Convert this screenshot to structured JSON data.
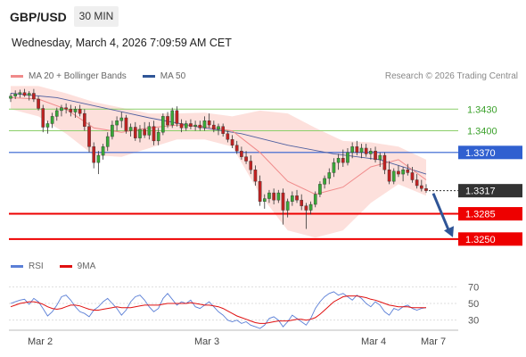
{
  "header": {
    "symbol": "GBP/USD",
    "timeframe": "30 MIN",
    "datetime": "Wednesday, March 4, 2026 7:09:59 AM CET"
  },
  "legend": {
    "items": [
      {
        "label": "MA 20 + Bollinger Bands",
        "color": "#f08a8a"
      },
      {
        "label": "MA 50",
        "color": "#2f5597"
      }
    ],
    "credit": "Research © 2026 Trading Central"
  },
  "rsi_legend": {
    "items": [
      {
        "label": "RSI",
        "color": "#5b7fd6"
      },
      {
        "label": "9MA",
        "color": "#e01010"
      }
    ]
  },
  "x_axis": {
    "ticks": [
      "Mar 2",
      "Mar 3",
      "Mar 4",
      "Mar 7"
    ]
  },
  "levels": [
    {
      "value": 1.343,
      "label": "1.3430",
      "kind": "green"
    },
    {
      "value": 1.34,
      "label": "1.3400",
      "kind": "green"
    },
    {
      "value": 1.337,
      "label": "1.3370",
      "kind": "pivot"
    },
    {
      "value": 1.3285,
      "label": "1.3285",
      "kind": "red"
    },
    {
      "value": 1.325,
      "label": "1.3250",
      "kind": "red"
    }
  ],
  "current_price": {
    "value": 1.3317,
    "label": "1.3317"
  },
  "colors": {
    "up": "#38a838",
    "down": "#c02222",
    "green_level": "#8ccf6a",
    "green_text": "#3aa02a",
    "pivot": "#3060d0",
    "red_level": "#ee0000",
    "current": "#333333",
    "band_fill": "#fde0dc",
    "ma20": "#f08a8a",
    "ma50": "#5060a0",
    "arrow": "#2f5597"
  },
  "chart_data": [
    {
      "type": "candlestick",
      "title": "GBP/USD 30 MIN",
      "ylim": [
        1.323,
        1.3465
      ],
      "ohlc": [
        [
          1.3445,
          1.3452,
          1.344,
          1.3448
        ],
        [
          1.3448,
          1.3456,
          1.3444,
          1.3451
        ],
        [
          1.3451,
          1.3457,
          1.3446,
          1.3453
        ],
        [
          1.3453,
          1.3458,
          1.3447,
          1.3449
        ],
        [
          1.3449,
          1.3455,
          1.3442,
          1.3452
        ],
        [
          1.3452,
          1.3458,
          1.344,
          1.3444
        ],
        [
          1.3444,
          1.3448,
          1.3428,
          1.3431
        ],
        [
          1.3431,
          1.3436,
          1.3398,
          1.3405
        ],
        [
          1.3405,
          1.3414,
          1.3396,
          1.341
        ],
        [
          1.341,
          1.3425,
          1.3404,
          1.342
        ],
        [
          1.342,
          1.3432,
          1.3414,
          1.3428
        ],
        [
          1.3428,
          1.3436,
          1.342,
          1.3432
        ],
        [
          1.3432,
          1.3438,
          1.3424,
          1.343
        ],
        [
          1.343,
          1.3436,
          1.342,
          1.3426
        ],
        [
          1.3426,
          1.3434,
          1.3418,
          1.343
        ],
        [
          1.343,
          1.3436,
          1.342,
          1.3424
        ],
        [
          1.3424,
          1.343,
          1.34,
          1.3406
        ],
        [
          1.3406,
          1.3412,
          1.337,
          1.3378
        ],
        [
          1.3378,
          1.3384,
          1.3348,
          1.3356
        ],
        [
          1.3356,
          1.3372,
          1.334,
          1.3366
        ],
        [
          1.3366,
          1.3382,
          1.336,
          1.3378
        ],
        [
          1.3378,
          1.3398,
          1.3372,
          1.3392
        ],
        [
          1.3392,
          1.3414,
          1.3388,
          1.3408
        ],
        [
          1.3408,
          1.342,
          1.34,
          1.3414
        ],
        [
          1.3414,
          1.3426,
          1.3404,
          1.3418
        ],
        [
          1.3418,
          1.3422,
          1.3396,
          1.34
        ],
        [
          1.34,
          1.341,
          1.3392,
          1.3405
        ],
        [
          1.3405,
          1.3412,
          1.3386,
          1.339
        ],
        [
          1.339,
          1.3408,
          1.3384,
          1.3402
        ],
        [
          1.3402,
          1.3412,
          1.339,
          1.3394
        ],
        [
          1.3394,
          1.3412,
          1.3388,
          1.3406
        ],
        [
          1.3406,
          1.3414,
          1.338,
          1.3386
        ],
        [
          1.3386,
          1.3404,
          1.338,
          1.3398
        ],
        [
          1.3398,
          1.3424,
          1.3394,
          1.342
        ],
        [
          1.342,
          1.3426,
          1.3404,
          1.3408
        ],
        [
          1.3408,
          1.3432,
          1.3404,
          1.3428
        ],
        [
          1.3428,
          1.3434,
          1.3406,
          1.341
        ],
        [
          1.341,
          1.3416,
          1.3398,
          1.3404
        ],
        [
          1.3404,
          1.3414,
          1.34,
          1.341
        ],
        [
          1.341,
          1.3416,
          1.3402,
          1.3406
        ],
        [
          1.3406,
          1.3414,
          1.34,
          1.3408
        ],
        [
          1.3408,
          1.3414,
          1.34,
          1.3404
        ],
        [
          1.3404,
          1.342,
          1.34,
          1.3414
        ],
        [
          1.3414,
          1.3424,
          1.3404,
          1.3408
        ],
        [
          1.3408,
          1.3414,
          1.3398,
          1.3402
        ],
        [
          1.3402,
          1.341,
          1.3394,
          1.3406
        ],
        [
          1.3406,
          1.341,
          1.3392,
          1.3396
        ],
        [
          1.3396,
          1.34,
          1.3384,
          1.3388
        ],
        [
          1.3388,
          1.3394,
          1.3376,
          1.338
        ],
        [
          1.338,
          1.3386,
          1.3368,
          1.3372
        ],
        [
          1.3372,
          1.3378,
          1.336,
          1.3364
        ],
        [
          1.3364,
          1.3372,
          1.3354,
          1.3358
        ],
        [
          1.3358,
          1.3366,
          1.334,
          1.3346
        ],
        [
          1.3346,
          1.3352,
          1.3324,
          1.333
        ],
        [
          1.333,
          1.3338,
          1.3296,
          1.3302
        ],
        [
          1.3302,
          1.3312,
          1.3292,
          1.3306
        ],
        [
          1.3306,
          1.3318,
          1.33,
          1.3314
        ],
        [
          1.3314,
          1.332,
          1.3298,
          1.3304
        ],
        [
          1.3304,
          1.3318,
          1.33,
          1.3314
        ],
        [
          1.3314,
          1.332,
          1.327,
          1.329
        ],
        [
          1.329,
          1.3306,
          1.328,
          1.3302
        ],
        [
          1.3302,
          1.3316,
          1.3296,
          1.331
        ],
        [
          1.331,
          1.3318,
          1.33,
          1.3304
        ],
        [
          1.3304,
          1.3312,
          1.329,
          1.3296
        ],
        [
          1.3296,
          1.33,
          1.3264,
          1.329
        ],
        [
          1.329,
          1.3302,
          1.3284,
          1.3298
        ],
        [
          1.3298,
          1.3316,
          1.3294,
          1.3312
        ],
        [
          1.3312,
          1.333,
          1.3308,
          1.3326
        ],
        [
          1.3326,
          1.3338,
          1.332,
          1.3334
        ],
        [
          1.3334,
          1.3348,
          1.3326,
          1.3342
        ],
        [
          1.3342,
          1.3362,
          1.3336,
          1.3356
        ],
        [
          1.3356,
          1.3368,
          1.3346,
          1.3362
        ],
        [
          1.3362,
          1.3374,
          1.335,
          1.3356
        ],
        [
          1.3356,
          1.3376,
          1.3352,
          1.337
        ],
        [
          1.337,
          1.3384,
          1.3362,
          1.3378
        ],
        [
          1.3378,
          1.3386,
          1.3366,
          1.337
        ],
        [
          1.337,
          1.3382,
          1.3362,
          1.3376
        ],
        [
          1.3376,
          1.3382,
          1.3364,
          1.3368
        ],
        [
          1.3368,
          1.3376,
          1.336,
          1.3372
        ],
        [
          1.3372,
          1.3378,
          1.3356,
          1.336
        ],
        [
          1.336,
          1.337,
          1.335,
          1.3366
        ],
        [
          1.3366,
          1.337,
          1.334,
          1.3346
        ],
        [
          1.3346,
          1.3358,
          1.3326,
          1.333
        ],
        [
          1.333,
          1.3348,
          1.3326,
          1.3344
        ],
        [
          1.3344,
          1.3352,
          1.3336,
          1.334
        ],
        [
          1.334,
          1.335,
          1.333,
          1.3346
        ],
        [
          1.3346,
          1.3354,
          1.3338,
          1.3342
        ],
        [
          1.3342,
          1.335,
          1.3328,
          1.3332
        ],
        [
          1.3332,
          1.334,
          1.332,
          1.3324
        ],
        [
          1.3324,
          1.3332,
          1.3316,
          1.332
        ],
        [
          1.332,
          1.3326,
          1.3314,
          1.3317
        ]
      ],
      "ma20": [
        [
          0,
          1.3446
        ],
        [
          6,
          1.3444
        ],
        [
          12,
          1.343
        ],
        [
          18,
          1.3404
        ],
        [
          24,
          1.3398
        ],
        [
          30,
          1.3404
        ],
        [
          36,
          1.3408
        ],
        [
          42,
          1.3406
        ],
        [
          48,
          1.34
        ],
        [
          54,
          1.337
        ],
        [
          60,
          1.333
        ],
        [
          66,
          1.3312
        ],
        [
          72,
          1.3322
        ],
        [
          78,
          1.335
        ],
        [
          84,
          1.336
        ],
        [
          90,
          1.3332
        ]
      ],
      "ma50": [
        [
          0,
          1.3452
        ],
        [
          10,
          1.3446
        ],
        [
          20,
          1.3432
        ],
        [
          30,
          1.3418
        ],
        [
          40,
          1.3406
        ],
        [
          50,
          1.3396
        ],
        [
          60,
          1.338
        ],
        [
          70,
          1.3368
        ],
        [
          80,
          1.336
        ],
        [
          90,
          1.334
        ]
      ],
      "bollinger_upper": [
        [
          0,
          1.3462
        ],
        [
          6,
          1.3462
        ],
        [
          12,
          1.3452
        ],
        [
          18,
          1.344
        ],
        [
          24,
          1.3432
        ],
        [
          30,
          1.3424
        ],
        [
          36,
          1.3424
        ],
        [
          42,
          1.3425
        ],
        [
          48,
          1.342
        ],
        [
          54,
          1.3428
        ],
        [
          60,
          1.3424
        ],
        [
          66,
          1.3404
        ],
        [
          72,
          1.3386
        ],
        [
          78,
          1.3384
        ],
        [
          84,
          1.3378
        ],
        [
          90,
          1.336
        ]
      ],
      "bollinger_lower": [
        [
          0,
          1.343
        ],
        [
          6,
          1.342
        ],
        [
          12,
          1.3396
        ],
        [
          18,
          1.3366
        ],
        [
          24,
          1.3364
        ],
        [
          30,
          1.3376
        ],
        [
          36,
          1.3388
        ],
        [
          42,
          1.3388
        ],
        [
          48,
          1.3378
        ],
        [
          54,
          1.3312
        ],
        [
          60,
          1.3262
        ],
        [
          66,
          1.3252
        ],
        [
          72,
          1.3262
        ],
        [
          78,
          1.33
        ],
        [
          84,
          1.3326
        ],
        [
          90,
          1.331
        ]
      ]
    },
    {
      "type": "line",
      "title": "RSI",
      "ylim": [
        20,
        80
      ],
      "ticks": [
        70,
        50,
        30
      ],
      "series": [
        {
          "name": "RSI",
          "values": [
            50,
            52,
            54,
            55,
            49,
            56,
            52,
            44,
            35,
            40,
            48,
            58,
            60,
            54,
            46,
            40,
            38,
            34,
            42,
            46,
            52,
            56,
            50,
            44,
            36,
            42,
            52,
            58,
            60,
            54,
            46,
            40,
            44,
            56,
            62,
            55,
            48,
            52,
            50,
            54,
            46,
            44,
            48,
            52,
            46,
            40,
            36,
            30,
            28,
            30,
            26,
            28,
            24,
            22,
            20,
            24,
            32,
            34,
            30,
            22,
            28,
            36,
            32,
            28,
            24,
            32,
            44,
            52,
            58,
            62,
            64,
            60,
            62,
            58,
            54,
            60,
            56,
            50,
            46,
            52,
            48,
            40,
            36,
            44,
            42,
            46,
            48,
            44,
            42,
            44,
            45
          ]
        },
        {
          "name": "9MA",
          "values": [
            46,
            48,
            50,
            51,
            52,
            52,
            51,
            49,
            46,
            44,
            43,
            44,
            46,
            48,
            48,
            47,
            45,
            43,
            42,
            42,
            43,
            44,
            45,
            46,
            45,
            45,
            45,
            46,
            47,
            48,
            48,
            48,
            48,
            49,
            50,
            50,
            50,
            50,
            50,
            51,
            50,
            49,
            48,
            48,
            47,
            46,
            44,
            41,
            38,
            35,
            33,
            31,
            29,
            27,
            26,
            26,
            27,
            28,
            29,
            29,
            29,
            30,
            31,
            31,
            30,
            31,
            33,
            37,
            42,
            47,
            52,
            55,
            58,
            59,
            59,
            59,
            58,
            57,
            55,
            54,
            52,
            50,
            48,
            47,
            46,
            46,
            46,
            45,
            45,
            45,
            45
          ]
        }
      ]
    }
  ],
  "arrow_target": 1.325
}
